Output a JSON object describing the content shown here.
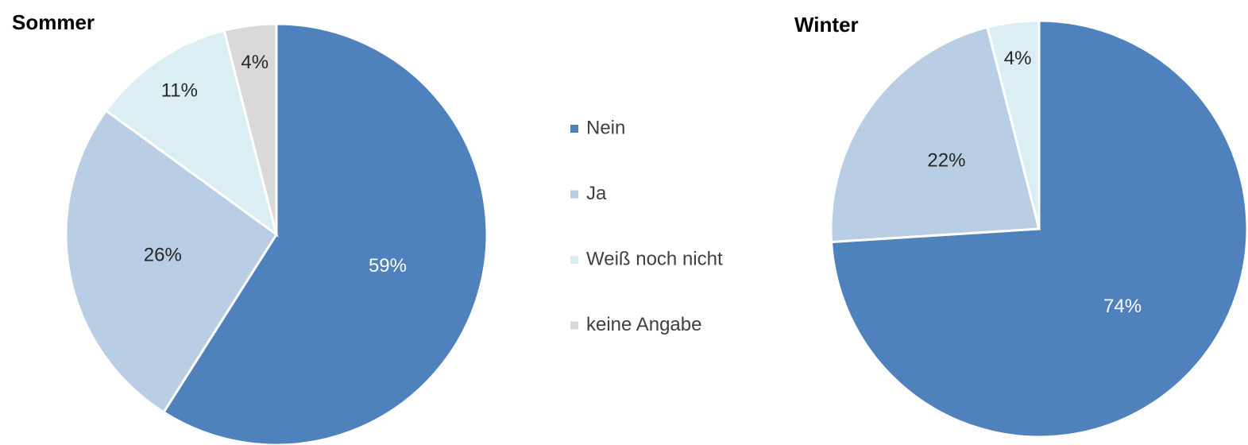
{
  "chart_data": [
    {
      "type": "pie",
      "title": "Sommer",
      "categories": [
        "Nein",
        "Ja",
        "Weiß noch nicht",
        "keine Angabe"
      ],
      "values": [
        59,
        26,
        11,
        4
      ],
      "value_labels": [
        "59%",
        "26%",
        "11%",
        "4%"
      ],
      "colors": [
        "#4f81bd",
        "#b9cde5",
        "#dbeef4",
        "#d9d9d9"
      ]
    },
    {
      "type": "pie",
      "title": "Winter",
      "categories": [
        "Nein",
        "Ja",
        "Weiß noch nicht"
      ],
      "values": [
        74,
        22,
        4
      ],
      "value_labels": [
        "74%",
        "22%",
        "4%"
      ],
      "colors": [
        "#4f81bd",
        "#b9cde5",
        "#dbeef4"
      ]
    }
  ]
}
